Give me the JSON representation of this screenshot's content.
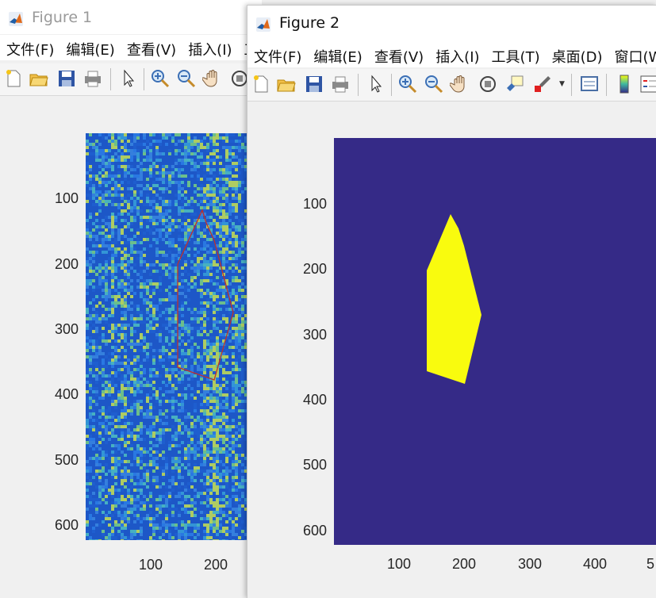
{
  "figure1": {
    "title": "Figure 1",
    "menu": [
      "文件(F)",
      "编辑(E)",
      "查看(V)",
      "插入(I)",
      "工"
    ],
    "y_ticks": [
      "100",
      "200",
      "300",
      "400",
      "500",
      "600"
    ],
    "x_ticks": [
      "100",
      "200"
    ]
  },
  "figure2": {
    "title": "Figure 2",
    "menu": [
      "文件(F)",
      "编辑(E)",
      "查看(V)",
      "插入(I)",
      "工具(T)",
      "桌面(D)",
      "窗口(W"
    ],
    "y_ticks": [
      "100",
      "200",
      "300",
      "400",
      "500",
      "600"
    ],
    "x_ticks": [
      "100",
      "200",
      "300",
      "400",
      "5"
    ],
    "background_color": "#352a87",
    "mask_color": "#f9fb0e"
  },
  "icons": [
    "new-file-icon",
    "open-folder-icon",
    "save-icon",
    "print-icon",
    "pointer-icon",
    "zoom-in-icon",
    "zoom-out-icon",
    "pan-hand-icon",
    "rotate-3d-icon",
    "data-cursor-icon",
    "brush-icon",
    "link-plot-icon",
    "colorbar-icon",
    "legend-icon"
  ]
}
